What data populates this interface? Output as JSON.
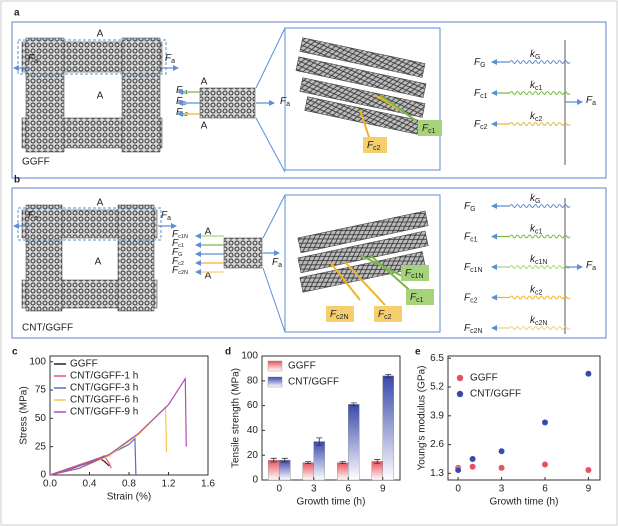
{
  "panel_a": {
    "label": "a",
    "cross": "A",
    "applied": {
      "main": "F",
      "sub": "a"
    },
    "fabric": "GGFF",
    "yarn_forces": [
      {
        "main": "F",
        "sub": "c1"
      },
      {
        "main": "F",
        "sub": "G"
      },
      {
        "main": "F",
        "sub": "c2"
      }
    ],
    "callouts": [
      {
        "main": "F",
        "sub": "c1"
      },
      {
        "main": "F",
        "sub": "c2"
      }
    ],
    "springs": [
      {
        "force": {
          "main": "F",
          "sub": "G"
        },
        "k": {
          "main": "k",
          "sub": "G"
        }
      },
      {
        "force": {
          "main": "F",
          "sub": "c1"
        },
        "k": {
          "main": "k",
          "sub": "c1"
        }
      },
      {
        "force": {
          "main": "F",
          "sub": "c2"
        },
        "k": {
          "main": "k",
          "sub": "c2"
        }
      }
    ]
  },
  "panel_b": {
    "label": "b",
    "cross": "A",
    "applied": {
      "main": "F",
      "sub": "a"
    },
    "fabric": "CNT/GGFF",
    "yarn_forces": [
      {
        "main": "F",
        "sub": "c1N"
      },
      {
        "main": "F",
        "sub": "c1"
      },
      {
        "main": "F",
        "sub": "G"
      },
      {
        "main": "F",
        "sub": "c2"
      },
      {
        "main": "F",
        "sub": "c2N"
      }
    ],
    "callouts": [
      {
        "main": "F",
        "sub": "c2N"
      },
      {
        "main": "F",
        "sub": "c2"
      },
      {
        "main": "F",
        "sub": "c1N"
      },
      {
        "main": "F",
        "sub": "c1"
      }
    ],
    "springs": [
      {
        "force": {
          "main": "F",
          "sub": "G"
        },
        "k": {
          "main": "k",
          "sub": "G"
        }
      },
      {
        "force": {
          "main": "F",
          "sub": "c1"
        },
        "k": {
          "main": "k",
          "sub": "c1"
        }
      },
      {
        "force": {
          "main": "F",
          "sub": "c1N"
        },
        "k": {
          "main": "k",
          "sub": "c1N"
        }
      },
      {
        "force": {
          "main": "F",
          "sub": "c2"
        },
        "k": {
          "main": "k",
          "sub": "c2"
        }
      },
      {
        "force": {
          "main": "F",
          "sub": "c2N"
        },
        "k": {
          "main": "k",
          "sub": "c2N"
        }
      }
    ]
  },
  "chart_data": [
    {
      "type": "line",
      "label": "c",
      "x_label": "Strain (%)",
      "y_label": "Stress (MPa)",
      "xlim": [
        0,
        1.6
      ],
      "xticks": [
        {
          "value": 0,
          "label": "0.0"
        },
        0.4,
        0.8,
        1.2,
        1.6
      ],
      "ylim": [
        0,
        105
      ],
      "yticks": [
        0,
        25,
        50,
        75,
        100
      ],
      "series": [
        {
          "name": "GGFF",
          "color": "#222222",
          "x": [
            0,
            0.1,
            0.2,
            0.3,
            0.4,
            0.5,
            0.55,
            0.6
          ],
          "values": [
            0,
            3,
            6,
            9,
            12,
            15,
            12,
            8
          ]
        },
        {
          "name": "CNT/GGFF-1 h",
          "color": "#f0506e",
          "x": [
            0,
            0.1,
            0.2,
            0.3,
            0.4,
            0.5,
            0.55,
            0.6,
            0.62
          ],
          "values": [
            0,
            3,
            6,
            9,
            12,
            15,
            17,
            10,
            6
          ]
        },
        {
          "name": "CNT/GGFF-3 h",
          "color": "#5470c6",
          "x": [
            0,
            0.2,
            0.4,
            0.6,
            0.8,
            0.86,
            0.87
          ],
          "values": [
            0,
            5,
            11,
            18,
            27,
            32,
            0
          ]
        },
        {
          "name": "CNT/GGFF-6 h",
          "color": "#f5c842",
          "x": [
            0,
            0.3,
            0.6,
            0.9,
            1.17,
            1.18
          ],
          "values": [
            0,
            6,
            17,
            36,
            60,
            20
          ]
        },
        {
          "name": "CNT/GGFF-9 h",
          "color": "#b04fb0",
          "x": [
            0,
            0.3,
            0.6,
            0.9,
            1.2,
            1.37,
            1.38
          ],
          "values": [
            0,
            6,
            18,
            37,
            62,
            85,
            25
          ]
        }
      ]
    },
    {
      "type": "bar",
      "label": "d",
      "x_label": "Growth time (h)",
      "y_label": "Tensile strength (MPa)",
      "categories": [
        "0",
        "3",
        "6",
        "9"
      ],
      "ylim": [
        0,
        100
      ],
      "yticks": [
        0,
        20,
        40,
        60,
        80,
        100
      ],
      "series": [
        {
          "name": "GGFF",
          "color": "#e8505b",
          "values": [
            16,
            14,
            14,
            15
          ],
          "errors": [
            1.5,
            0.8,
            0.8,
            1.5
          ]
        },
        {
          "name": "CNT/GGFF",
          "color": "#3949ab",
          "values": [
            16,
            31,
            61,
            84
          ],
          "errors": [
            1.5,
            3,
            1.2,
            1.2
          ]
        }
      ]
    },
    {
      "type": "scatter",
      "label": "e",
      "x_label": "Growth time (h)",
      "y_label": "Young's modulus (GPa)",
      "xlim": [
        -0.7,
        9.8
      ],
      "xticks": [
        0,
        3,
        6,
        9
      ],
      "ylim": [
        1.0,
        6.6
      ],
      "yticks": [
        1.3,
        2.6,
        3.9,
        5.2,
        6.5
      ],
      "series": [
        {
          "name": "GGFF",
          "color": "#e8505b",
          "x": [
            0,
            1,
            3,
            6,
            9
          ],
          "values": [
            1.55,
            1.6,
            1.55,
            1.7,
            1.45
          ]
        },
        {
          "name": "CNT/GGFF",
          "color": "#3949ab",
          "x": [
            0,
            1,
            3,
            6,
            9
          ],
          "values": [
            1.45,
            1.95,
            2.3,
            3.6,
            5.8
          ]
        }
      ]
    }
  ]
}
